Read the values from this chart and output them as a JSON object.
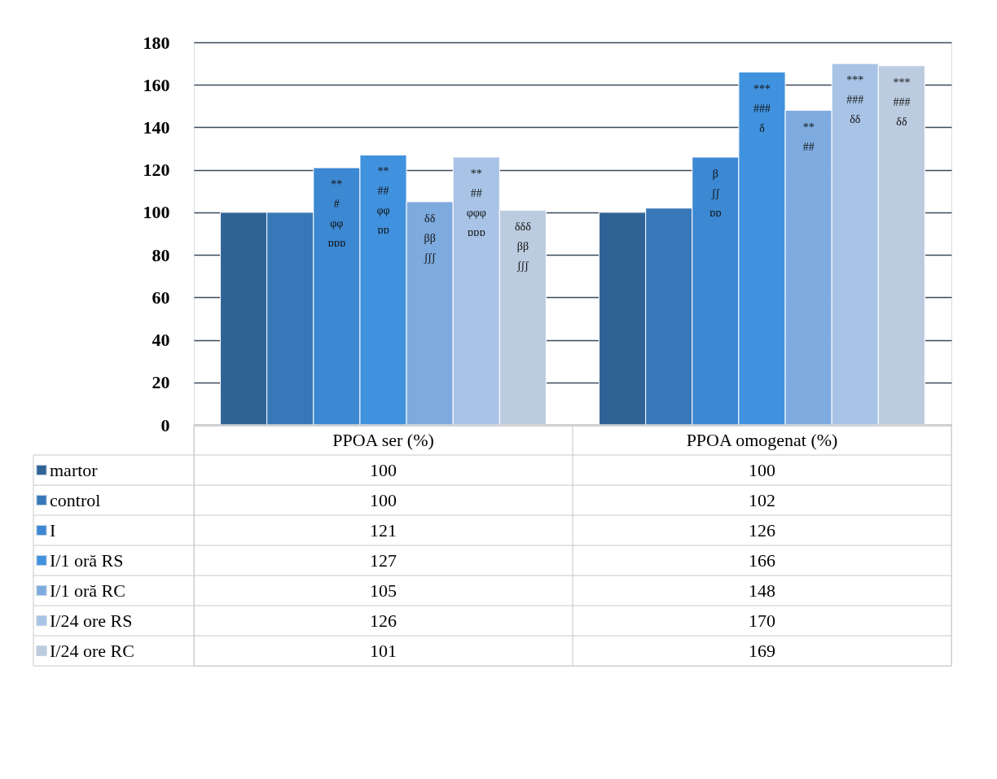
{
  "chart_data": {
    "type": "bar",
    "categories": [
      "PPOA ser (%)",
      "PPOA omogenat (%)"
    ],
    "series": [
      {
        "name": "martor",
        "color": "#2f6396",
        "values": [
          100,
          100
        ]
      },
      {
        "name": "control",
        "color": "#3878b8",
        "values": [
          100,
          102
        ]
      },
      {
        "name": "I",
        "color": "#3c88d2",
        "values": [
          121,
          126
        ]
      },
      {
        "name": "I/1 oră RS",
        "color": "#4192de",
        "values": [
          127,
          166
        ]
      },
      {
        "name": "I/1 oră RC",
        "color": "#7eabdf",
        "values": [
          105,
          148
        ]
      },
      {
        "name": "I/24 ore RS",
        "color": "#a8c3e6",
        "values": [
          126,
          170
        ]
      },
      {
        "name": "I/24 ore RC",
        "color": "#bccce0",
        "values": [
          101,
          169
        ]
      }
    ],
    "ylim": [
      0,
      180
    ],
    "yticks": [
      0,
      20,
      40,
      60,
      80,
      100,
      120,
      140,
      160,
      180
    ],
    "grid": "y",
    "legend": "bottom left",
    "data_labels": true,
    "annotations": [
      "**\n#\nφφ\nɒɒɒ",
      "**\n##\nφφ\nɒɒ",
      "δδ\nββ\nʃʃʃ",
      "**\n##\nφφφ\nɒɒɒ",
      "δδδ\nββ\nʃʃʃ",
      "β\nʃʃ\nɒɒ",
      "***\n###\nδ",
      "**\n##",
      "***\n###\nδδ",
      "***\n###\nδδ"
    ]
  }
}
